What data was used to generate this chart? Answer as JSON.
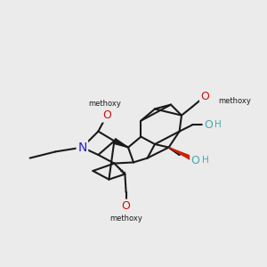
{
  "bg_color": "#ebebeb",
  "bond_color": "#1a1a1a",
  "bond_lw": 1.5,
  "N_color": "#2020cc",
  "O_color": "#cc1111",
  "OH_color": "#44aaaa",
  "wedge_red": "#cc2200",
  "figsize": [
    3.0,
    3.0
  ],
  "dpi": 100,
  "xlim": [
    30,
    280
  ],
  "ylim": [
    30,
    280
  ]
}
